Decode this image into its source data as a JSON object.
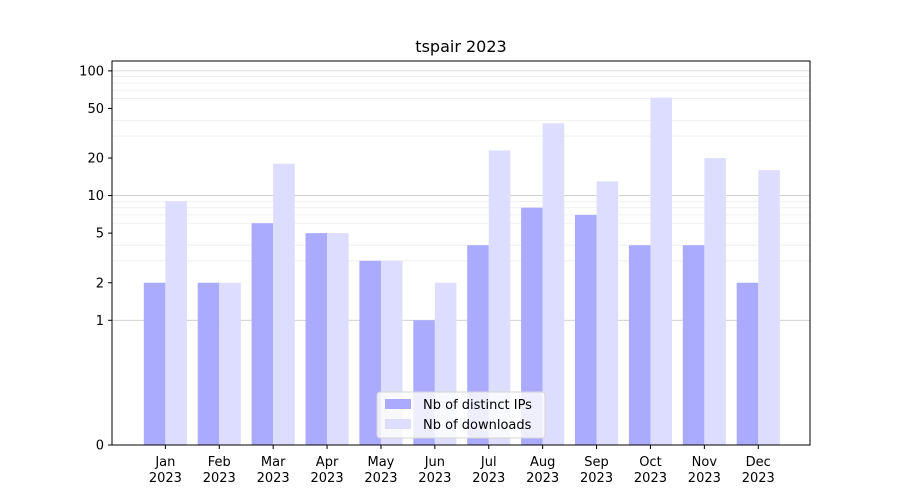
{
  "chart_data": {
    "type": "bar",
    "title": "tspair 2023",
    "xlabel": "",
    "ylabel": "",
    "yscale": "symlog",
    "ylim": [
      0,
      120
    ],
    "yticks": [
      0,
      1,
      2,
      5,
      10,
      20,
      50,
      100
    ],
    "grid": true,
    "legend_position": "bottom-center",
    "categories": [
      {
        "month": "Jan",
        "year": "2023"
      },
      {
        "month": "Feb",
        "year": "2023"
      },
      {
        "month": "Mar",
        "year": "2023"
      },
      {
        "month": "Apr",
        "year": "2023"
      },
      {
        "month": "May",
        "year": "2023"
      },
      {
        "month": "Jun",
        "year": "2023"
      },
      {
        "month": "Jul",
        "year": "2023"
      },
      {
        "month": "Aug",
        "year": "2023"
      },
      {
        "month": "Sep",
        "year": "2023"
      },
      {
        "month": "Oct",
        "year": "2023"
      },
      {
        "month": "Nov",
        "year": "2023"
      },
      {
        "month": "Dec",
        "year": "2023"
      }
    ],
    "series": [
      {
        "name": "Nb of distinct IPs",
        "color": "#aaaaff",
        "values": [
          2,
          2,
          6,
          5,
          3,
          1,
          4,
          8,
          7,
          4,
          4,
          2
        ]
      },
      {
        "name": "Nb of downloads",
        "color": "#ddddff",
        "values": [
          9,
          2,
          18,
          5,
          3,
          2,
          23,
          38,
          13,
          61,
          20,
          16
        ]
      }
    ]
  }
}
